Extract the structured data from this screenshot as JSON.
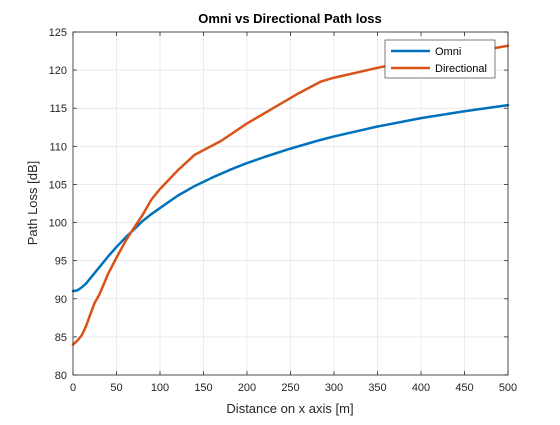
{
  "chart_data": {
    "type": "line",
    "title": "Omni vs Directional Path loss",
    "xlabel": "Distance on x axis [m]",
    "ylabel": "Path Loss [dB]",
    "xlim": [
      0,
      500
    ],
    "ylim": [
      80,
      125
    ],
    "xticks": [
      "0",
      "50",
      "100",
      "150",
      "200",
      "250",
      "300",
      "350",
      "400",
      "450",
      "500"
    ],
    "yticks": [
      "80",
      "85",
      "90",
      "95",
      "100",
      "105",
      "110",
      "115",
      "120",
      "125"
    ],
    "grid": true,
    "legend_position": "top-right",
    "series": [
      {
        "name": "Omni",
        "color": "#0072BD",
        "x": [
          0,
          5,
          10,
          15,
          20,
          30,
          40,
          50,
          60,
          70,
          80,
          90,
          100,
          120,
          140,
          160,
          180,
          200,
          220,
          250,
          280,
          300,
          350,
          400,
          450,
          500
        ],
        "y": [
          91.0,
          91.1,
          91.5,
          92.0,
          92.7,
          94.1,
          95.5,
          96.8,
          98.0,
          99.1,
          100.2,
          101.1,
          101.9,
          103.5,
          104.8,
          105.9,
          106.9,
          107.8,
          108.6,
          109.7,
          110.7,
          111.3,
          112.6,
          113.7,
          114.6,
          115.4
        ]
      },
      {
        "name": "Directional",
        "color": "#D95319",
        "x": [
          0,
          5,
          10,
          15,
          20,
          25,
          30,
          35,
          40,
          50,
          60,
          70,
          80,
          90,
          100,
          120,
          140,
          170,
          200,
          230,
          260,
          285,
          300,
          350,
          380,
          420,
          460,
          500
        ],
        "y": [
          84.0,
          84.5,
          85.2,
          86.4,
          88.0,
          89.5,
          90.5,
          91.8,
          93.2,
          95.4,
          97.5,
          99.3,
          101.0,
          103.0,
          104.4,
          106.8,
          108.9,
          110.7,
          113.0,
          115.0,
          117.0,
          118.5,
          119.0,
          120.3,
          121.0,
          121.7,
          122.4,
          123.2
        ]
      }
    ]
  }
}
